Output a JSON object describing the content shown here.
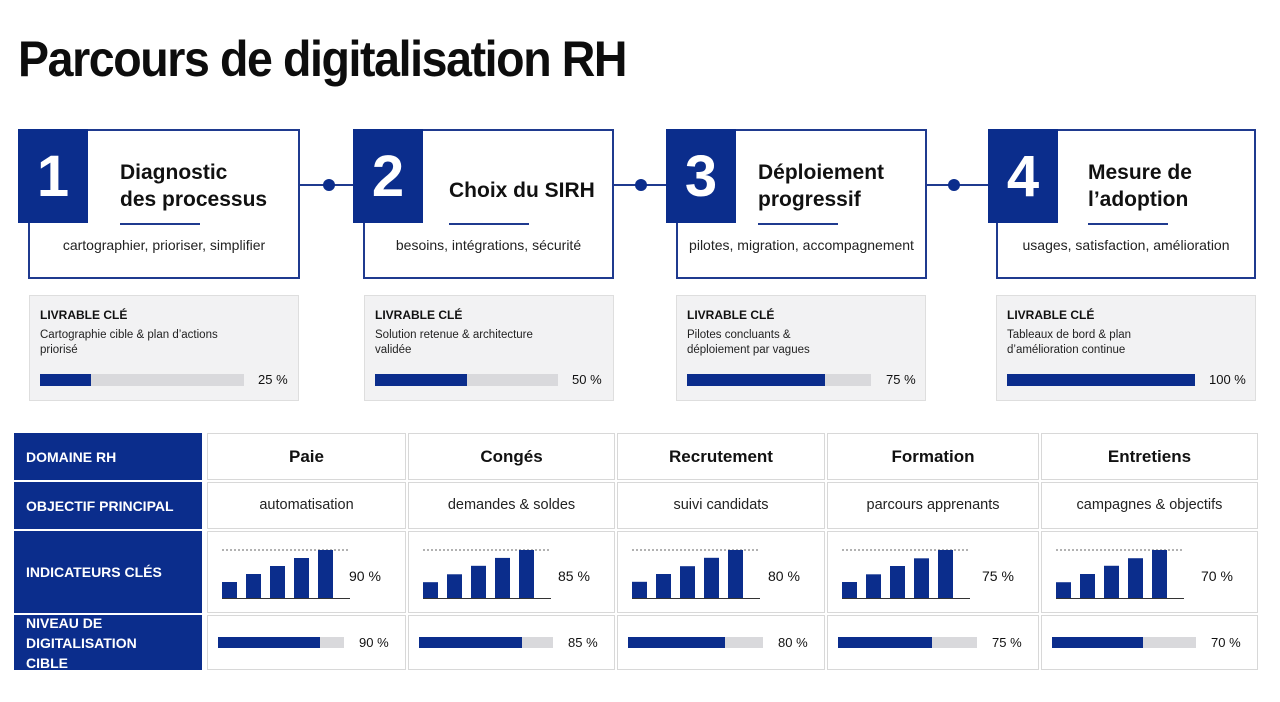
{
  "title": "Parcours de digitalisation RH",
  "colors": {
    "accent": "#0b2d8c",
    "track": "#d9d9dc",
    "border": "#1f3a8f"
  },
  "steps": [
    {
      "number": "1",
      "title_line1": "Diagnostic",
      "title_line2": "des processus",
      "description": "cartographier, prioriser, simplifier"
    },
    {
      "number": "2",
      "title_line1": "Choix du SIRH",
      "title_line2": "",
      "description": "besoins, intégrations, sécurité"
    },
    {
      "number": "3",
      "title_line1": "Déploiement",
      "title_line2": "progressif",
      "description": "pilotes, migration, accompagnement"
    },
    {
      "number": "4",
      "title_line1": "Mesure de",
      "title_line2": "l’adoption",
      "description": "usages, satisfaction, amélioration"
    }
  ],
  "deliverables": [
    {
      "label": "LIVRABLE CLÉ",
      "line1": "Cartographie cible & plan d’actions",
      "line2": "priorisé",
      "progress": 0.25,
      "percent_text": "25 %"
    },
    {
      "label": "LIVRABLE CLÉ",
      "line1": "Solution retenue & architecture",
      "line2": "validée",
      "progress": 0.5,
      "percent_text": "50 %"
    },
    {
      "label": "LIVRABLE CLÉ",
      "line1": "Pilotes concluants &",
      "line2": "déploiement par vagues",
      "progress": 0.75,
      "percent_text": "75 %"
    },
    {
      "label": "LIVRABLE CLÉ",
      "line1": "Tableaux de bord & plan",
      "line2": "d’amélioration continue",
      "progress": 1.0,
      "percent_text": "100 %"
    }
  ],
  "table": {
    "row_headers": {
      "domain": "DOMAINE RH",
      "objective": "OBJECTIF PRINCIPAL",
      "kpi": "INDICATEURS CLÉS",
      "level_line1": "NIVEAU DE DIGITALISATION",
      "level_line2": "CIBLE"
    },
    "domains": [
      {
        "name": "Paie",
        "objective": "automatisation",
        "kpi_text": "90 %",
        "level": 0.9,
        "level_text": "90 %"
      },
      {
        "name": "Congés",
        "objective": "demandes & soldes",
        "kpi_text": "85 %",
        "level": 0.85,
        "level_text": "85 %"
      },
      {
        "name": "Recrutement",
        "objective": "suivi candidats",
        "kpi_text": "80 %",
        "level": 0.8,
        "level_text": "80 %"
      },
      {
        "name": "Formation",
        "objective": "parcours apprenants",
        "kpi_text": "75 %",
        "level": 0.75,
        "level_text": "75 %"
      },
      {
        "name": "Entretiens",
        "objective": "campagnes & objectifs",
        "kpi_text": "70 %",
        "level": 0.7,
        "level_text": "70 %"
      }
    ]
  },
  "chart_data": [
    {
      "type": "bar",
      "target": 90,
      "values": [
        30,
        45,
        60,
        75,
        90
      ]
    },
    {
      "type": "bar",
      "target": 85,
      "values": [
        28,
        42,
        57,
        71,
        85
      ]
    },
    {
      "type": "bar",
      "target": 80,
      "values": [
        27,
        40,
        53,
        67,
        80
      ]
    },
    {
      "type": "bar",
      "target": 75,
      "values": [
        25,
        37,
        50,
        62,
        75
      ]
    },
    {
      "type": "bar",
      "target": 70,
      "values": [
        23,
        35,
        47,
        58,
        70
      ]
    }
  ]
}
